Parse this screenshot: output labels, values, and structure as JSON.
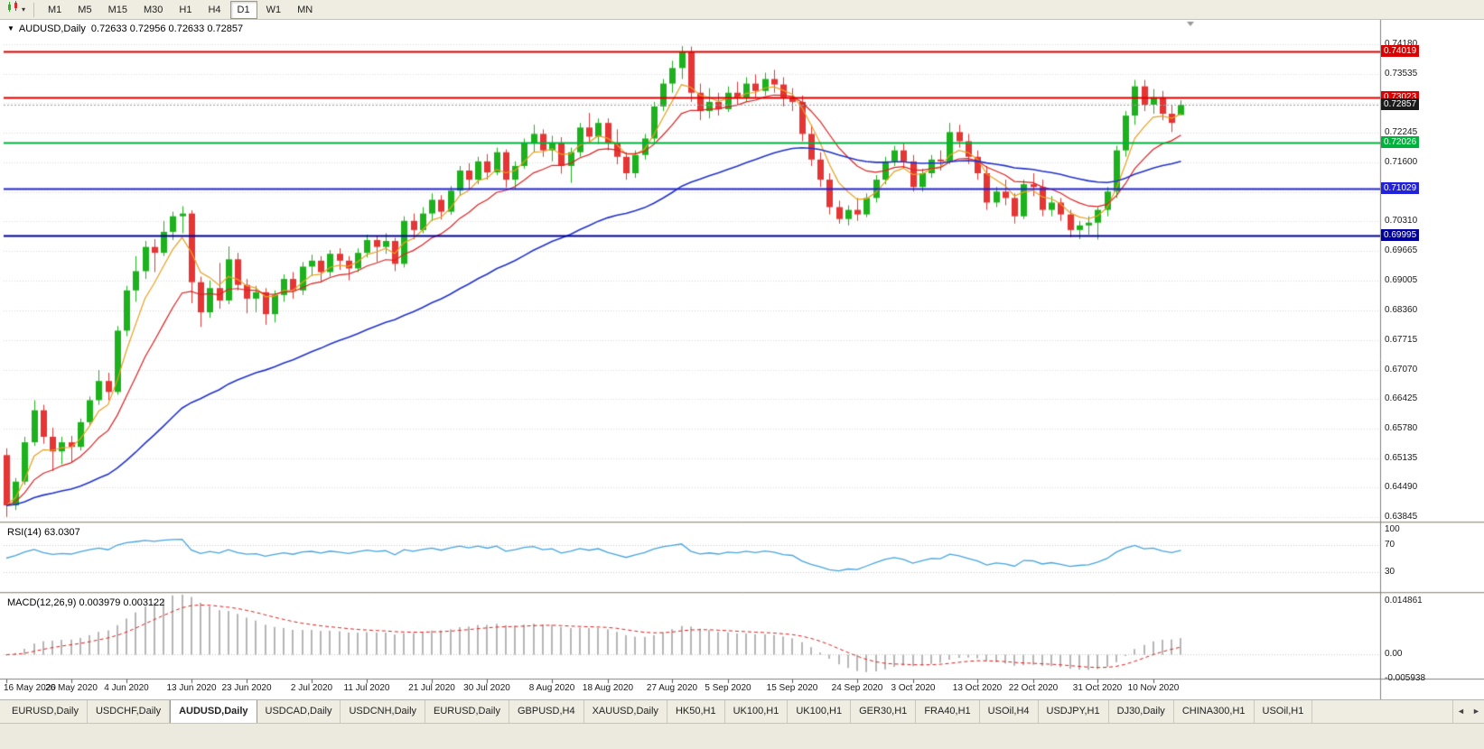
{
  "toolbar": {
    "timeframes": [
      "M1",
      "M5",
      "M15",
      "M30",
      "H1",
      "H4",
      "D1",
      "W1",
      "MN"
    ],
    "active_timeframe": "D1"
  },
  "chart": {
    "collapse_icon": "▼",
    "title": "AUDUSD,Daily",
    "ohlc_text": "0.72633 0.72956 0.72633 0.72857"
  },
  "chart_data": {
    "type": "candlestick",
    "symbol": "AUDUSD",
    "period": "Daily",
    "ohlc": {
      "open": 0.72633,
      "high": 0.72956,
      "low": 0.72633,
      "close": 0.72857
    },
    "y_range": {
      "top": 0.74713,
      "bottom": 0.63747
    },
    "colors": {
      "bull": "#1db21d",
      "bear": "#e53535"
    },
    "y_axis_labels": [
      "0.74180",
      "0.73535",
      "0.72890",
      "0.72245",
      "0.71600",
      "0.70955",
      "0.70310",
      "0.69665",
      "0.69005",
      "0.68360",
      "0.67715",
      "0.67070",
      "0.66425",
      "0.65780",
      "0.65135",
      "0.64490",
      "0.63845"
    ],
    "x_labels": [
      {
        "index": 0,
        "label": "16 May 2020"
      },
      {
        "index": 7,
        "label": "26 May 2020"
      },
      {
        "index": 13,
        "label": "4 Jun 2020"
      },
      {
        "index": 20,
        "label": "13 Jun 2020"
      },
      {
        "index": 26,
        "label": "23 Jun 2020"
      },
      {
        "index": 33,
        "label": "2 Jul 2020"
      },
      {
        "index": 39,
        "label": "11 Jul 2020"
      },
      {
        "index": 46,
        "label": "21 Jul 2020"
      },
      {
        "index": 52,
        "label": "30 Jul 2020"
      },
      {
        "index": 59,
        "label": "8 Aug 2020"
      },
      {
        "index": 65,
        "label": "18 Aug 2020"
      },
      {
        "index": 72,
        "label": "27 Aug 2020"
      },
      {
        "index": 78,
        "label": "5 Sep 2020"
      },
      {
        "index": 85,
        "label": "15 Sep 2020"
      },
      {
        "index": 92,
        "label": "24 Sep 2020"
      },
      {
        "index": 98,
        "label": "3 Oct 2020"
      },
      {
        "index": 105,
        "label": "13 Oct 2020"
      },
      {
        "index": 111,
        "label": "22 Oct 2020"
      },
      {
        "index": 118,
        "label": "31 Oct 2020"
      },
      {
        "index": 124,
        "label": "10 Nov 2020"
      }
    ],
    "candles": [
      [
        0.652,
        0.6535,
        0.6385,
        0.641
      ],
      [
        0.641,
        0.647,
        0.64,
        0.6462
      ],
      [
        0.6462,
        0.656,
        0.6455,
        0.6548
      ],
      [
        0.6548,
        0.664,
        0.654,
        0.6618
      ],
      [
        0.6618,
        0.663,
        0.6545,
        0.656
      ],
      [
        0.656,
        0.658,
        0.6485,
        0.6528
      ],
      [
        0.6528,
        0.656,
        0.65,
        0.6548
      ],
      [
        0.6548,
        0.6562,
        0.6505,
        0.6538
      ],
      [
        0.6538,
        0.66,
        0.653,
        0.6592
      ],
      [
        0.6592,
        0.6648,
        0.6585,
        0.664
      ],
      [
        0.664,
        0.6706,
        0.663,
        0.6682
      ],
      [
        0.6682,
        0.67,
        0.664,
        0.6658
      ],
      [
        0.6658,
        0.6802,
        0.6652,
        0.6792
      ],
      [
        0.6792,
        0.689,
        0.678,
        0.688
      ],
      [
        0.688,
        0.6955,
        0.6855,
        0.6922
      ],
      [
        0.6922,
        0.6988,
        0.6905,
        0.6975
      ],
      [
        0.6975,
        0.6992,
        0.692,
        0.6962
      ],
      [
        0.6962,
        0.7032,
        0.6955,
        0.7008
      ],
      [
        0.7008,
        0.7052,
        0.699,
        0.7042
      ],
      [
        0.7042,
        0.7064,
        0.7005,
        0.7048
      ],
      [
        0.7048,
        0.7055,
        0.6852,
        0.6898
      ],
      [
        0.6898,
        0.691,
        0.68,
        0.6832
      ],
      [
        0.6832,
        0.6902,
        0.682,
        0.6885
      ],
      [
        0.6885,
        0.694,
        0.684,
        0.6858
      ],
      [
        0.6858,
        0.6976,
        0.685,
        0.6948
      ],
      [
        0.6948,
        0.6962,
        0.688,
        0.6892
      ],
      [
        0.6892,
        0.6905,
        0.683,
        0.6862
      ],
      [
        0.6862,
        0.689,
        0.6832,
        0.6876
      ],
      [
        0.6876,
        0.6885,
        0.6805,
        0.6828
      ],
      [
        0.6828,
        0.688,
        0.681,
        0.687
      ],
      [
        0.687,
        0.6915,
        0.6855,
        0.6905
      ],
      [
        0.6905,
        0.692,
        0.6862,
        0.688
      ],
      [
        0.688,
        0.6942,
        0.687,
        0.6932
      ],
      [
        0.6932,
        0.6958,
        0.6912,
        0.6945
      ],
      [
        0.6945,
        0.6955,
        0.6898,
        0.692
      ],
      [
        0.692,
        0.6968,
        0.691,
        0.696
      ],
      [
        0.696,
        0.6972,
        0.6925,
        0.6945
      ],
      [
        0.6945,
        0.6955,
        0.6902,
        0.6928
      ],
      [
        0.6928,
        0.6972,
        0.692,
        0.6962
      ],
      [
        0.6962,
        0.7002,
        0.6952,
        0.699
      ],
      [
        0.699,
        0.7,
        0.6942,
        0.6975
      ],
      [
        0.6975,
        0.7005,
        0.696,
        0.6988
      ],
      [
        0.6988,
        0.6995,
        0.6922,
        0.6938
      ],
      [
        0.6938,
        0.7042,
        0.693,
        0.7032
      ],
      [
        0.7032,
        0.7048,
        0.6992,
        0.7012
      ],
      [
        0.7012,
        0.7062,
        0.7005,
        0.7048
      ],
      [
        0.7048,
        0.7092,
        0.7032,
        0.7078
      ],
      [
        0.7078,
        0.7088,
        0.7035,
        0.7052
      ],
      [
        0.7052,
        0.7108,
        0.7045,
        0.7098
      ],
      [
        0.7098,
        0.7152,
        0.7088,
        0.7142
      ],
      [
        0.7142,
        0.7158,
        0.7102,
        0.7122
      ],
      [
        0.7122,
        0.7172,
        0.7112,
        0.7162
      ],
      [
        0.7162,
        0.7178,
        0.7122,
        0.7138
      ],
      [
        0.7138,
        0.7192,
        0.7132,
        0.7182
      ],
      [
        0.7182,
        0.7188,
        0.7105,
        0.7122
      ],
      [
        0.7122,
        0.7162,
        0.7102,
        0.7152
      ],
      [
        0.7152,
        0.7212,
        0.7146,
        0.7202
      ],
      [
        0.7202,
        0.7242,
        0.7182,
        0.7222
      ],
      [
        0.7222,
        0.7232,
        0.7172,
        0.7186
      ],
      [
        0.7186,
        0.7218,
        0.7162,
        0.7202
      ],
      [
        0.7202,
        0.7215,
        0.7135,
        0.7152
      ],
      [
        0.7152,
        0.7192,
        0.7115,
        0.7182
      ],
      [
        0.7182,
        0.7246,
        0.7172,
        0.7236
      ],
      [
        0.7236,
        0.7268,
        0.7202,
        0.7216
      ],
      [
        0.7216,
        0.7256,
        0.72,
        0.7246
      ],
      [
        0.7246,
        0.7256,
        0.7186,
        0.7202
      ],
      [
        0.7202,
        0.7232,
        0.7156,
        0.7172
      ],
      [
        0.7172,
        0.7182,
        0.7122,
        0.7136
      ],
      [
        0.7136,
        0.7186,
        0.7126,
        0.7176
      ],
      [
        0.7176,
        0.7222,
        0.7166,
        0.7212
      ],
      [
        0.7212,
        0.7292,
        0.7202,
        0.7282
      ],
      [
        0.7282,
        0.7342,
        0.7272,
        0.7332
      ],
      [
        0.7332,
        0.7382,
        0.7312,
        0.7366
      ],
      [
        0.7366,
        0.7414,
        0.7342,
        0.7402
      ],
      [
        0.7402,
        0.7413,
        0.7292,
        0.7312
      ],
      [
        0.7312,
        0.7332,
        0.7252,
        0.7272
      ],
      [
        0.7272,
        0.7322,
        0.7256,
        0.7292
      ],
      [
        0.7292,
        0.7312,
        0.7262,
        0.7276
      ],
      [
        0.7276,
        0.7326,
        0.727,
        0.7312
      ],
      [
        0.7312,
        0.7336,
        0.7286,
        0.7302
      ],
      [
        0.7302,
        0.7346,
        0.7292,
        0.7332
      ],
      [
        0.7332,
        0.7352,
        0.7302,
        0.7316
      ],
      [
        0.7316,
        0.7356,
        0.7306,
        0.7342
      ],
      [
        0.7342,
        0.7362,
        0.7312,
        0.733
      ],
      [
        0.733,
        0.7346,
        0.7282,
        0.7302
      ],
      [
        0.7302,
        0.7322,
        0.7272,
        0.7292
      ],
      [
        0.7292,
        0.7306,
        0.7206,
        0.7222
      ],
      [
        0.7222,
        0.7242,
        0.7152,
        0.7166
      ],
      [
        0.7166,
        0.7182,
        0.7106,
        0.7122
      ],
      [
        0.7122,
        0.7136,
        0.7046,
        0.7062
      ],
      [
        0.7062,
        0.7076,
        0.7026,
        0.7036
      ],
      [
        0.7036,
        0.7066,
        0.7022,
        0.7056
      ],
      [
        0.7056,
        0.7082,
        0.7032,
        0.7046
      ],
      [
        0.7046,
        0.7092,
        0.704,
        0.7082
      ],
      [
        0.7082,
        0.7132,
        0.7072,
        0.7122
      ],
      [
        0.7122,
        0.7172,
        0.7112,
        0.7162
      ],
      [
        0.7162,
        0.7196,
        0.7152,
        0.7186
      ],
      [
        0.7186,
        0.7202,
        0.7146,
        0.7162
      ],
      [
        0.7162,
        0.7176,
        0.7096,
        0.7106
      ],
      [
        0.7106,
        0.7146,
        0.7096,
        0.7136
      ],
      [
        0.7136,
        0.7176,
        0.7126,
        0.7166
      ],
      [
        0.7166,
        0.7186,
        0.7142,
        0.7162
      ],
      [
        0.7162,
        0.7246,
        0.7156,
        0.7226
      ],
      [
        0.7226,
        0.7242,
        0.7192,
        0.7206
      ],
      [
        0.7206,
        0.7222,
        0.7156,
        0.7172
      ],
      [
        0.7172,
        0.7186,
        0.7122,
        0.7136
      ],
      [
        0.7136,
        0.7152,
        0.7056,
        0.7072
      ],
      [
        0.7072,
        0.7106,
        0.7062,
        0.7096
      ],
      [
        0.7096,
        0.7122,
        0.7066,
        0.7082
      ],
      [
        0.7082,
        0.7092,
        0.7026,
        0.7042
      ],
      [
        0.7042,
        0.7122,
        0.7036,
        0.7112
      ],
      [
        0.7112,
        0.7136,
        0.7086,
        0.7106
      ],
      [
        0.7106,
        0.7122,
        0.7042,
        0.7056
      ],
      [
        0.7056,
        0.7086,
        0.7042,
        0.7072
      ],
      [
        0.7072,
        0.7082,
        0.7032,
        0.7046
      ],
      [
        0.7046,
        0.7056,
        0.6996,
        0.7012
      ],
      [
        0.7012,
        0.7032,
        0.6992,
        0.7022
      ],
      [
        0.7022,
        0.7042,
        0.7002,
        0.7028
      ],
      [
        0.7028,
        0.7062,
        0.6991,
        0.7056
      ],
      [
        0.7056,
        0.7106,
        0.7042,
        0.7096
      ],
      [
        0.7096,
        0.7196,
        0.7082,
        0.7186
      ],
      [
        0.7186,
        0.7272,
        0.7172,
        0.7262
      ],
      [
        0.7262,
        0.734,
        0.7242,
        0.7326
      ],
      [
        0.7326,
        0.734,
        0.7272,
        0.7286
      ],
      [
        0.7286,
        0.732,
        0.7266,
        0.7302
      ],
      [
        0.7302,
        0.7316,
        0.7252,
        0.7266
      ],
      [
        0.7266,
        0.7286,
        0.7226,
        0.7246
      ],
      [
        0.72633,
        0.72956,
        0.72633,
        0.72857
      ]
    ],
    "moving_averages": [
      {
        "name": "ma-fast",
        "period": 5,
        "color": "#e8a020",
        "width": 1.2
      },
      {
        "name": "ma-medium",
        "period": 12,
        "color": "#dd2222",
        "width": 1.2
      },
      {
        "name": "ma-slow",
        "period": 45,
        "color": "#2233cc",
        "width": 1.6
      }
    ],
    "horizontal_lines": [
      {
        "price": 0.74019,
        "label": "0.74019",
        "color": "#dd0000",
        "width": 2
      },
      {
        "price": 0.73023,
        "label": "0.73023",
        "color": "#dd0000",
        "width": 2
      },
      {
        "price": 0.72026,
        "label": "0.72026",
        "color": "#00b23c",
        "width": 2
      },
      {
        "price": 0.71029,
        "label": "0.71029",
        "color": "#2222dd",
        "width": 2
      },
      {
        "price": 0.69995,
        "label": "0.69995",
        "color": "#0000a0",
        "width": 2
      }
    ],
    "current_price": {
      "value": 0.72857,
      "label": "0.72857",
      "color": "#1a1a1a"
    },
    "indicators": {
      "rsi": {
        "label": "RSI(14) 63.0307",
        "period": 14,
        "value": 63.0307,
        "color": "#46a5e0",
        "levels": [
          70,
          30
        ],
        "axis_labels": [
          "100",
          "70",
          "30"
        ]
      },
      "macd": {
        "label": "MACD(12,26,9) 0.003979 0.003122",
        "fast": 12,
        "slow": 26,
        "signal_period": 9,
        "main_value": 0.003979,
        "signal_value": 0.003122,
        "histogram_color": "#b6b6b6",
        "signal_color": "#dd2222",
        "axis_labels": [
          "0.014861",
          "0.00",
          "-0.005938"
        ]
      }
    }
  },
  "tabs": {
    "items": [
      "EURUSD,Daily",
      "USDCHF,Daily",
      "AUDUSD,Daily",
      "USDCAD,Daily",
      "USDCNH,Daily",
      "EURUSD,Daily",
      "GBPUSD,H4",
      "XAUUSD,Daily",
      "HK50,H1",
      "UK100,H1",
      "UK100,H1",
      "GER30,H1",
      "FRA40,H1",
      "USOil,H4",
      "USDJPY,H1",
      "DJ30,Daily",
      "CHINA300,H1",
      "USOil,H1"
    ],
    "active_index": 2,
    "scroll_left_icon": "◄",
    "scroll_right_icon": "►"
  }
}
